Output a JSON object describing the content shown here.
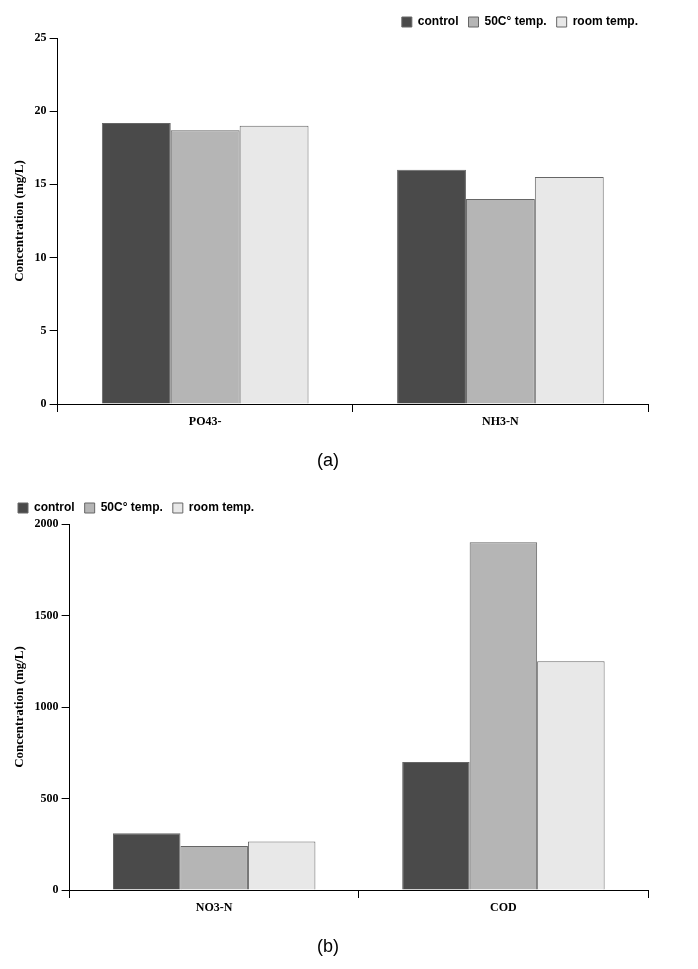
{
  "chart_data": [
    {
      "type": "bar",
      "title": "(a)",
      "y_label": "Concentration (mg/L)",
      "categories": [
        "PO43-",
        "NH3-N"
      ],
      "series": [
        {
          "name": "control",
          "color": "#4a4a4a",
          "values": [
            19.2,
            16.0
          ]
        },
        {
          "name": "50C° temp.",
          "color": "#b5b5b5",
          "values": [
            18.7,
            14.0
          ]
        },
        {
          "name": "room temp.",
          "color": "#e8e8e8",
          "values": [
            19.0,
            15.5
          ]
        }
      ],
      "ylim": [
        0,
        25
      ],
      "yticks": [
        0,
        5,
        10,
        15,
        20,
        25
      ],
      "grid": false,
      "legend": "upper right"
    },
    {
      "type": "bar",
      "title": "(b)",
      "y_label": "Concentration (mg/L)",
      "categories": [
        "NO3-N",
        "COD"
      ],
      "series": [
        {
          "name": "control",
          "color": "#4a4a4a",
          "values": [
            310,
            700
          ]
        },
        {
          "name": "50C° temp.",
          "color": "#b5b5b5",
          "values": [
            240,
            1900
          ]
        },
        {
          "name": "room temp.",
          "color": "#e8e8e8",
          "values": [
            265,
            1250
          ]
        }
      ],
      "ylim": [
        0,
        2000
      ],
      "yticks": [
        0,
        500,
        1000,
        1500,
        2000
      ],
      "grid": false,
      "legend": "upper left"
    }
  ]
}
